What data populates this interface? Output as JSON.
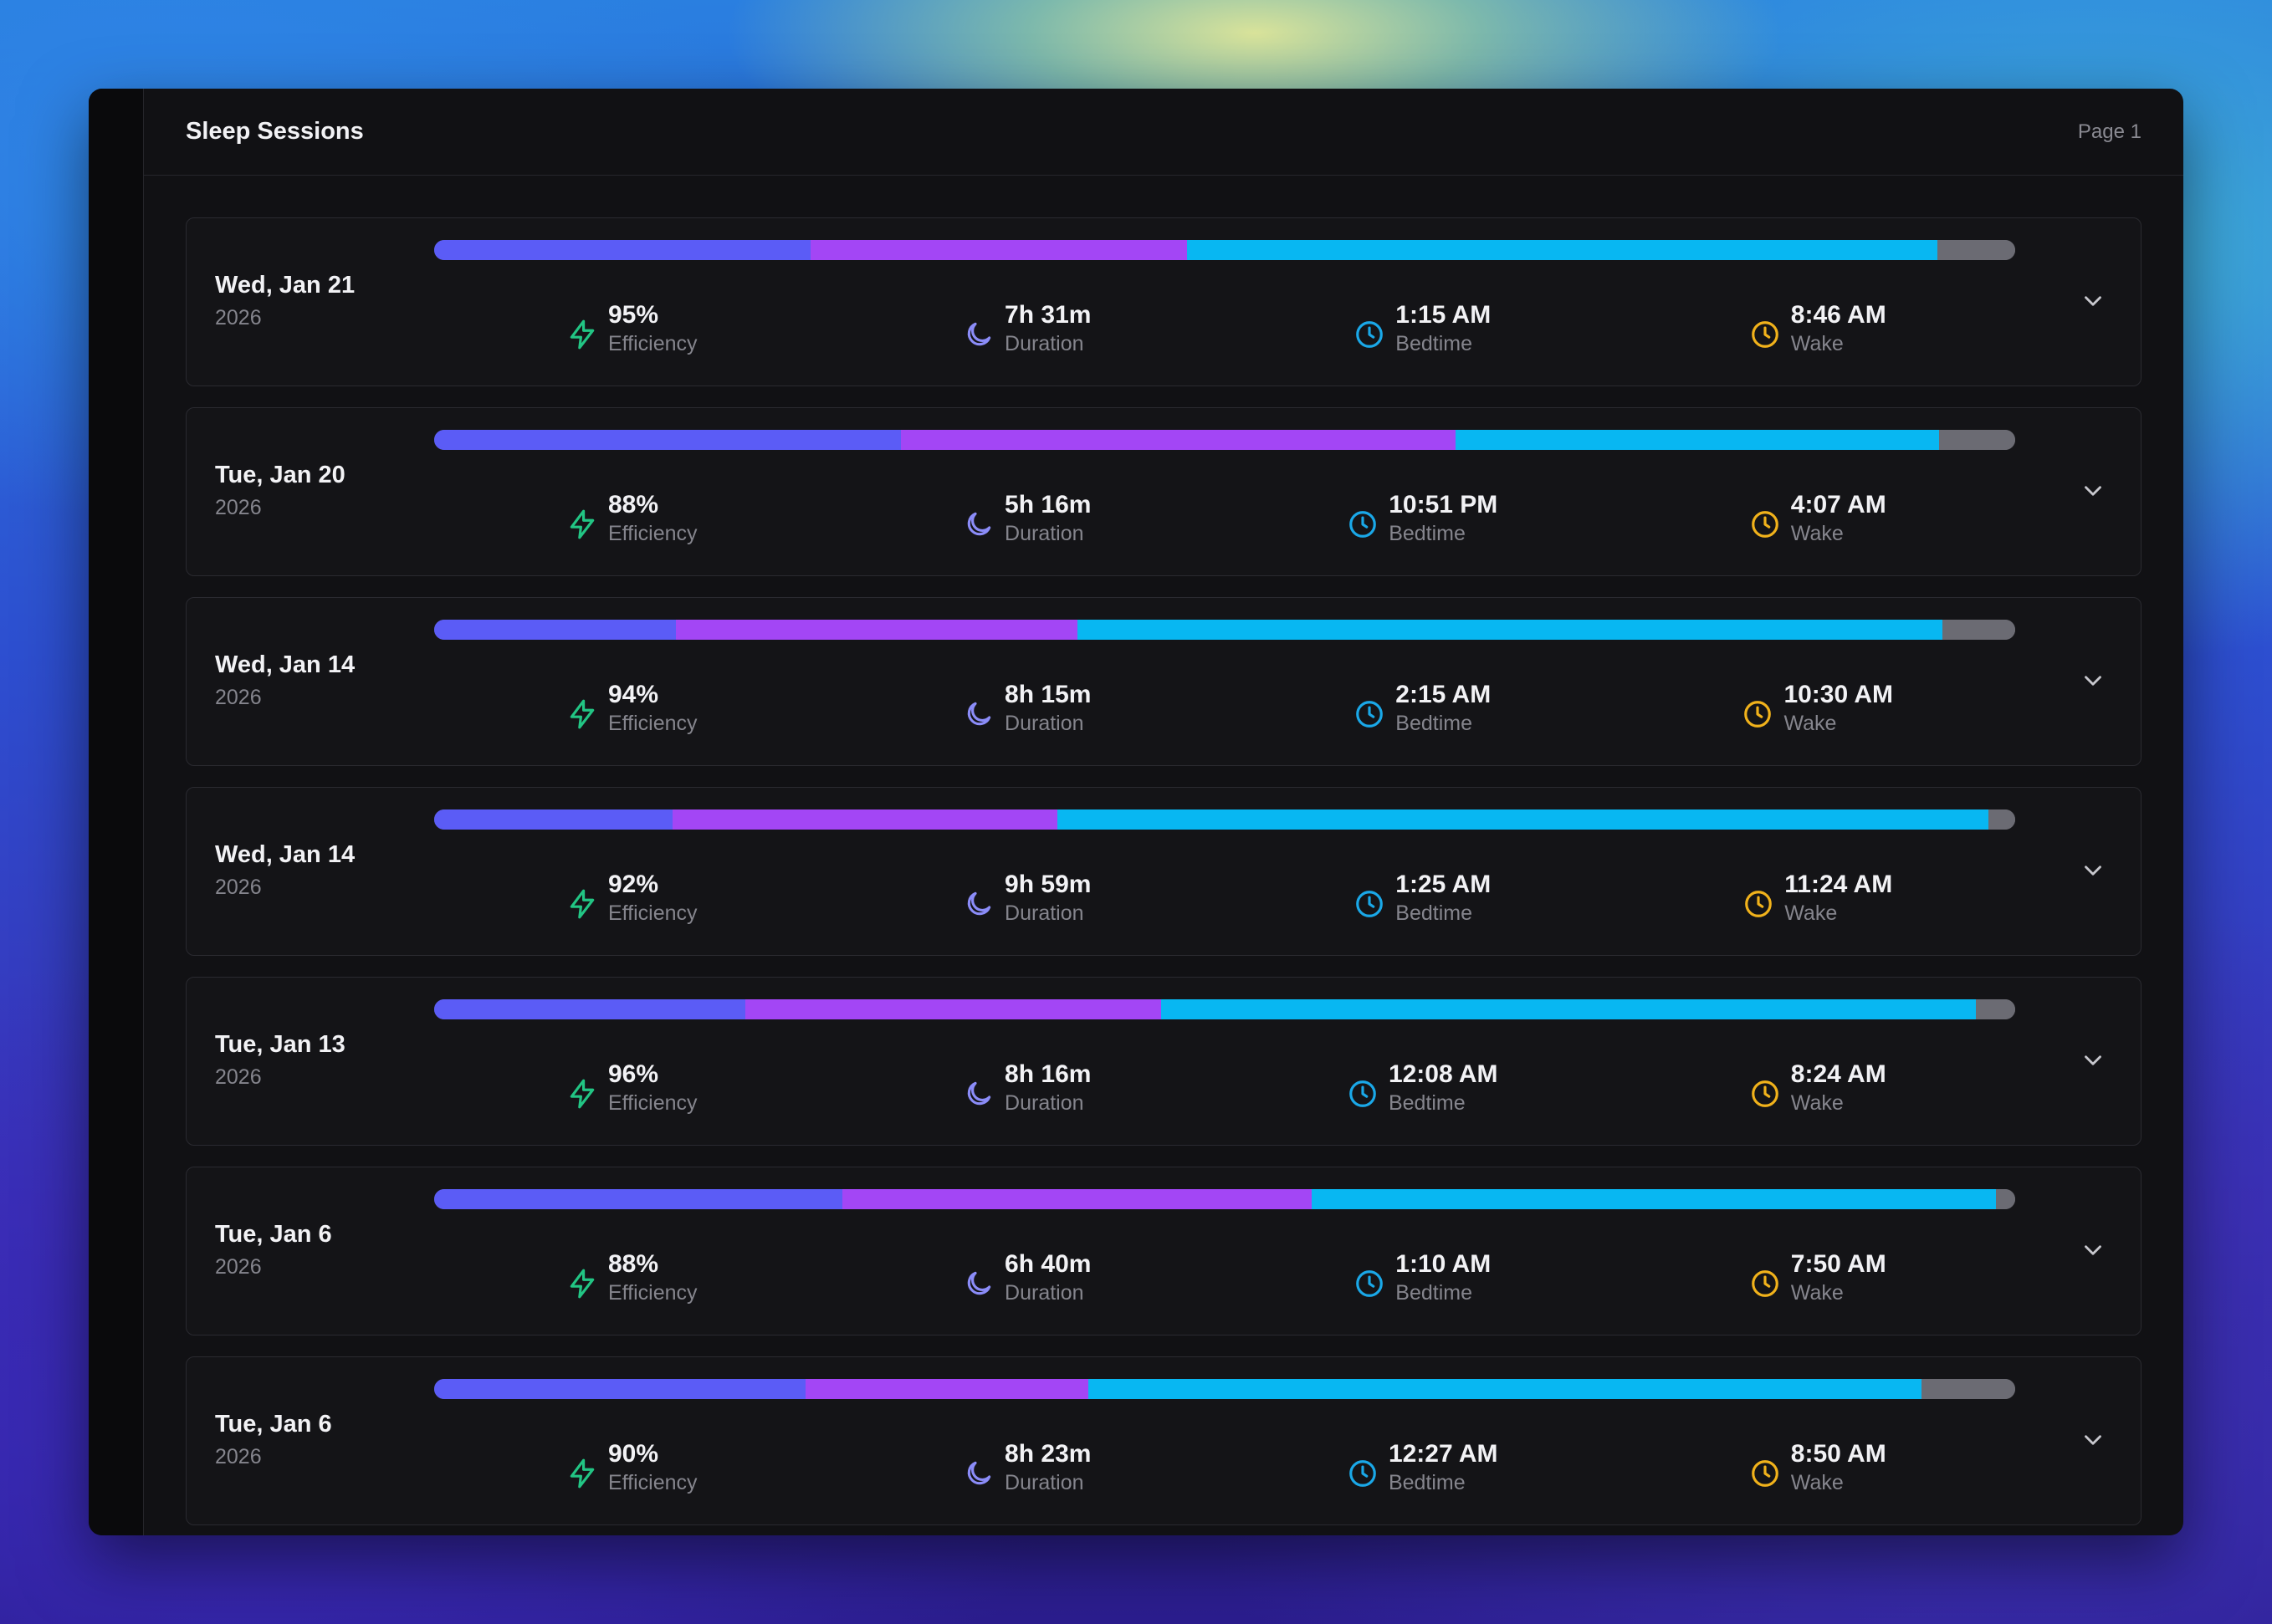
{
  "header": {
    "title": "Sleep Sessions",
    "page": "Page 1"
  },
  "colors": {
    "deep": "#5b5cf6",
    "rem": "#a346f5",
    "light": "#08b7f2",
    "awake": "#6b6b73",
    "efficiency": "#22c584",
    "duration": "#8b8cf8",
    "bedtime": "#1aa8e8",
    "wake": "#f1b21b"
  },
  "labels": {
    "efficiency": "Efficiency",
    "duration": "Duration",
    "bedtime": "Bedtime",
    "wake": "Wake"
  },
  "sessions": [
    {
      "date": "Wed, Jan 21",
      "year": "2026",
      "efficiency": "95%",
      "duration": "7h 31m",
      "bedtime": "1:15 AM",
      "wake": "8:46 AM",
      "stages": [
        23.8,
        23.8,
        47.5,
        4.9
      ]
    },
    {
      "date": "Tue, Jan 20",
      "year": "2026",
      "efficiency": "88%",
      "duration": "5h 16m",
      "bedtime": "10:51 PM",
      "wake": "4:07 AM",
      "stages": [
        29.5,
        35.1,
        30.6,
        4.8
      ]
    },
    {
      "date": "Wed, Jan 14",
      "year": "2026",
      "efficiency": "94%",
      "duration": "8h 15m",
      "bedtime": "2:15 AM",
      "wake": "10:30 AM",
      "stages": [
        15.3,
        25.4,
        54.7,
        4.6
      ]
    },
    {
      "date": "Wed, Jan 14",
      "year": "2026",
      "efficiency": "92%",
      "duration": "9h 59m",
      "bedtime": "1:25 AM",
      "wake": "11:24 AM",
      "stages": [
        15.1,
        24.3,
        58.9,
        1.7
      ]
    },
    {
      "date": "Tue, Jan 13",
      "year": "2026",
      "efficiency": "96%",
      "duration": "8h 16m",
      "bedtime": "12:08 AM",
      "wake": "8:24 AM",
      "stages": [
        19.7,
        26.3,
        51.5,
        2.5
      ]
    },
    {
      "date": "Tue, Jan 6",
      "year": "2026",
      "efficiency": "88%",
      "duration": "6h 40m",
      "bedtime": "1:10 AM",
      "wake": "7:50 AM",
      "stages": [
        25.8,
        29.7,
        43.3,
        1.2
      ]
    },
    {
      "date": "Tue, Jan 6",
      "year": "2026",
      "efficiency": "90%",
      "duration": "8h 23m",
      "bedtime": "12:27 AM",
      "wake": "8:50 AM",
      "stages": [
        23.5,
        17.9,
        52.7,
        5.9
      ]
    }
  ]
}
